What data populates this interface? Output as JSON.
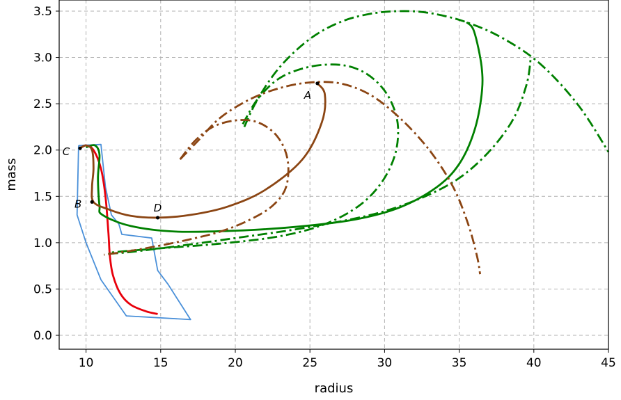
{
  "chart_data": {
    "type": "line",
    "title": "",
    "xlabel": "radius",
    "ylabel": "mass",
    "xlim": [
      8.2,
      45
    ],
    "ylim": [
      -0.15,
      3.62
    ],
    "xticks": [
      10,
      15,
      20,
      25,
      30,
      35,
      40,
      45
    ],
    "xtick_labels": [
      "10",
      "15",
      "20",
      "25",
      "30",
      "35",
      "40",
      "45"
    ],
    "yticks": [
      0.0,
      0.5,
      1.0,
      1.5,
      2.0,
      2.5,
      3.0,
      3.5
    ],
    "ytick_labels": [
      "0.0",
      "0.5",
      "1.0",
      "1.5",
      "2.0",
      "2.5",
      "3.0",
      "3.5"
    ],
    "grid": true,
    "colors": {
      "brown": "#8B4513",
      "green": "#008000",
      "red": "#E8000B",
      "blue": "#4A90D9"
    },
    "series": [
      {
        "color": "#4A90D9",
        "style": "solid",
        "points": [
          [
            9.5,
            2.05
          ],
          [
            11.0,
            2.06
          ],
          [
            11.3,
            1.6
          ],
          [
            11.7,
            1.3
          ],
          [
            12.2,
            1.2
          ],
          [
            12.4,
            1.09
          ],
          [
            14.4,
            1.05
          ],
          [
            14.8,
            0.7
          ],
          [
            15.5,
            0.55
          ],
          [
            17.0,
            0.17
          ],
          [
            12.7,
            0.21
          ],
          [
            11.0,
            0.6
          ],
          [
            10.0,
            1.0
          ],
          [
            9.4,
            1.3
          ],
          [
            9.5,
            2.05
          ]
        ]
      },
      {
        "color": "#E8000B",
        "style": "solid",
        "points": [
          [
            9.6,
            2.02
          ],
          [
            10.0,
            2.05
          ],
          [
            10.5,
            2.0
          ],
          [
            11.0,
            1.8
          ],
          [
            11.3,
            1.5
          ],
          [
            11.5,
            1.1
          ],
          [
            11.6,
            0.85
          ],
          [
            11.8,
            0.65
          ],
          [
            12.3,
            0.45
          ],
          [
            13.0,
            0.33
          ],
          [
            14.0,
            0.26
          ],
          [
            14.8,
            0.23
          ]
        ]
      },
      {
        "color": "#008000",
        "style": "solid",
        "points": [
          [
            10.0,
            2.03
          ],
          [
            10.6,
            2.05
          ],
          [
            10.9,
            1.95
          ],
          [
            10.8,
            1.7
          ],
          [
            10.9,
            1.4
          ],
          [
            11.1,
            1.3
          ],
          [
            13.0,
            1.18
          ],
          [
            16.0,
            1.12
          ],
          [
            20.0,
            1.13
          ],
          [
            24.0,
            1.17
          ],
          [
            28.0,
            1.25
          ],
          [
            31.0,
            1.38
          ],
          [
            33.5,
            1.6
          ],
          [
            35.0,
            1.85
          ],
          [
            36.0,
            2.2
          ],
          [
            36.5,
            2.6
          ],
          [
            36.5,
            2.9
          ],
          [
            36.0,
            3.28
          ],
          [
            35.5,
            3.38
          ]
        ]
      },
      {
        "color": "#8B4513",
        "style": "solid",
        "points": [
          [
            9.6,
            2.02
          ],
          [
            10.0,
            2.05
          ],
          [
            10.4,
            2.0
          ],
          [
            10.5,
            1.8
          ],
          [
            10.4,
            1.6
          ],
          [
            10.5,
            1.44
          ],
          [
            11.5,
            1.36
          ],
          [
            13.0,
            1.29
          ],
          [
            14.8,
            1.27
          ],
          [
            17.0,
            1.3
          ],
          [
            19.5,
            1.39
          ],
          [
            22.0,
            1.57
          ],
          [
            24.5,
            1.9
          ],
          [
            25.8,
            2.3
          ],
          [
            26.0,
            2.6
          ],
          [
            25.5,
            2.72
          ]
        ]
      },
      {
        "color": "#008000",
        "style": "dashdot",
        "points": [
          [
            11.5,
            0.88
          ],
          [
            13.0,
            0.9
          ],
          [
            16.0,
            0.96
          ],
          [
            20.0,
            1.05
          ],
          [
            25.0,
            1.17
          ],
          [
            30.0,
            1.34
          ],
          [
            34.0,
            1.6
          ],
          [
            36.5,
            1.9
          ],
          [
            38.5,
            2.3
          ],
          [
            39.5,
            2.7
          ],
          [
            39.8,
            3.0
          ]
        ]
      },
      {
        "color": "#008000",
        "style": "dashdot",
        "points": [
          [
            20.6,
            2.25
          ],
          [
            21.5,
            2.55
          ],
          [
            23.0,
            2.9
          ],
          [
            25.0,
            3.2
          ],
          [
            27.0,
            3.38
          ],
          [
            29.0,
            3.47
          ],
          [
            31.0,
            3.5
          ],
          [
            33.0,
            3.48
          ],
          [
            35.5,
            3.38
          ],
          [
            38.0,
            3.2
          ],
          [
            40.5,
            2.92
          ],
          [
            43.0,
            2.48
          ],
          [
            45.0,
            1.98
          ]
        ]
      },
      {
        "color": "#008000",
        "style": "dashdot",
        "points": [
          [
            20.5,
            2.28
          ],
          [
            21.5,
            2.55
          ],
          [
            23.0,
            2.78
          ],
          [
            25.0,
            2.9
          ],
          [
            27.0,
            2.92
          ],
          [
            28.5,
            2.85
          ],
          [
            29.7,
            2.7
          ],
          [
            30.5,
            2.5
          ],
          [
            30.9,
            2.25
          ],
          [
            30.7,
            1.95
          ],
          [
            29.8,
            1.65
          ],
          [
            28.3,
            1.4
          ],
          [
            26.0,
            1.2
          ],
          [
            23.0,
            1.07
          ],
          [
            19.0,
            0.99
          ],
          [
            15.0,
            0.94
          ],
          [
            12.0,
            0.9
          ],
          [
            11.5,
            0.88
          ]
        ]
      },
      {
        "color": "#8B4513",
        "style": "dashdot",
        "points": [
          [
            16.3,
            1.9
          ],
          [
            17.3,
            2.1
          ],
          [
            18.5,
            2.25
          ],
          [
            20.0,
            2.32
          ],
          [
            21.5,
            2.3
          ],
          [
            22.8,
            2.15
          ],
          [
            23.5,
            1.9
          ],
          [
            23.4,
            1.6
          ],
          [
            22.5,
            1.4
          ],
          [
            21.0,
            1.25
          ],
          [
            19.0,
            1.12
          ],
          [
            16.5,
            1.02
          ],
          [
            14.0,
            0.94
          ],
          [
            12.5,
            0.9
          ],
          [
            11.2,
            0.87
          ]
        ]
      },
      {
        "color": "#8B4513",
        "style": "dashdot",
        "points": [
          [
            16.3,
            1.9
          ],
          [
            17.5,
            2.1
          ],
          [
            19.0,
            2.35
          ],
          [
            21.0,
            2.55
          ],
          [
            23.0,
            2.67
          ],
          [
            25.0,
            2.73
          ],
          [
            27.0,
            2.72
          ],
          [
            29.0,
            2.6
          ],
          [
            31.0,
            2.35
          ],
          [
            33.0,
            2.0
          ],
          [
            34.6,
            1.6
          ],
          [
            35.6,
            1.2
          ],
          [
            36.2,
            0.85
          ],
          [
            36.4,
            0.66
          ]
        ]
      }
    ],
    "annotations": [
      {
        "text": "A",
        "point": [
          25.5,
          2.72
        ],
        "dx": -14,
        "dy": 22
      },
      {
        "text": "B",
        "point": [
          10.4,
          1.44
        ],
        "dx": -20,
        "dy": 8
      },
      {
        "text": "C",
        "point": [
          9.6,
          2.02
        ],
        "dx": -20,
        "dy": 10
      },
      {
        "text": "D",
        "point": [
          14.8,
          1.27
        ],
        "dx": 0,
        "dy": -9
      }
    ]
  }
}
